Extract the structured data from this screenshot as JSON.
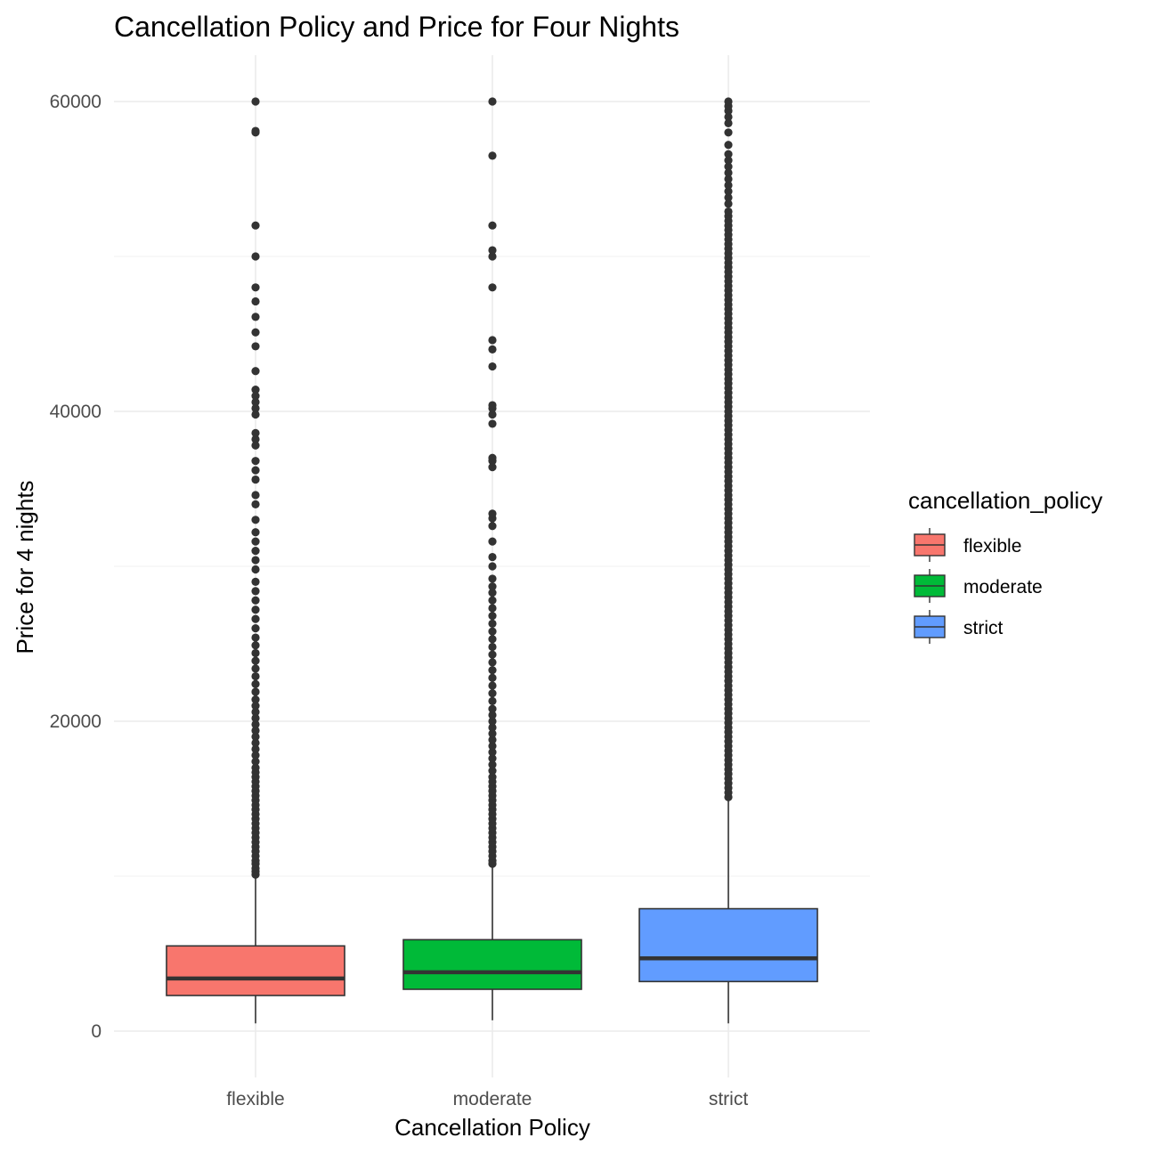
{
  "chart_data": {
    "type": "boxplot",
    "title": "Cancellation Policy and Price for Four Nights",
    "xlabel": "Cancellation Policy",
    "ylabel": "Price for 4 nights",
    "ylim": [
      -1500,
      63000
    ],
    "y_ticks": [
      0,
      20000,
      40000,
      60000
    ],
    "y_tick_labels": [
      "0",
      "20000",
      "40000",
      "60000"
    ],
    "grid": true,
    "legend": {
      "title": "cancellation_policy",
      "position": "right",
      "entries": [
        "flexible",
        "moderate",
        "strict"
      ]
    },
    "categories": [
      "flexible",
      "moderate",
      "strict"
    ],
    "colors": {
      "flexible": "#F8766D",
      "moderate": "#00BA38",
      "strict": "#619CFF",
      "box_outline": "#333333",
      "outlier": "#333333"
    },
    "series": [
      {
        "category": "flexible",
        "whisker_low": 500,
        "q1": 2300,
        "median": 3400,
        "q3": 5500,
        "whisker_high": 10000,
        "outliers": [
          10100,
          10300,
          10500,
          10800,
          11000,
          11300,
          11600,
          11900,
          12200,
          12500,
          12800,
          13100,
          13400,
          13700,
          14000,
          14300,
          14600,
          14900,
          15200,
          15500,
          15800,
          16100,
          16400,
          16700,
          17000,
          17400,
          17800,
          18200,
          18600,
          19000,
          19400,
          19800,
          20200,
          20600,
          21000,
          21400,
          21900,
          22400,
          22900,
          23400,
          23900,
          24400,
          24900,
          25400,
          26000,
          26600,
          27200,
          27800,
          28400,
          29000,
          29800,
          30400,
          31000,
          31600,
          32200,
          33000,
          34000,
          34600,
          35600,
          36200,
          36800,
          37800,
          38200,
          38600,
          39800,
          40200,
          40600,
          41000,
          41400,
          42600,
          44200,
          45100,
          46100,
          47100,
          48000,
          50000,
          52000,
          58000,
          58100,
          60000
        ]
      },
      {
        "category": "moderate",
        "whisker_low": 700,
        "q1": 2700,
        "median": 3800,
        "q3": 5900,
        "whisker_high": 10700,
        "outliers": [
          10800,
          11000,
          11300,
          11600,
          11900,
          12200,
          12500,
          12800,
          13100,
          13400,
          13700,
          14000,
          14300,
          14600,
          14900,
          15200,
          15500,
          15800,
          16100,
          16400,
          16800,
          17200,
          17600,
          18000,
          18400,
          18800,
          19200,
          19600,
          20000,
          20400,
          20800,
          21300,
          21800,
          22300,
          22800,
          23300,
          23800,
          24300,
          24800,
          25300,
          25800,
          26300,
          26800,
          27300,
          27800,
          28300,
          28700,
          29200,
          30000,
          30600,
          31600,
          32600,
          33100,
          33400,
          36400,
          36800,
          37000,
          39200,
          39800,
          40200,
          40400,
          42900,
          44000,
          44600,
          48000,
          50000,
          50400,
          52000,
          56500,
          60000
        ]
      },
      {
        "category": "strict",
        "whisker_low": 500,
        "q1": 3200,
        "median": 4700,
        "q3": 7900,
        "whisker_high": 15000,
        "outliers": [
          15100,
          15400,
          15700,
          16000,
          16300,
          16600,
          16900,
          17200,
          17500,
          17800,
          18100,
          18400,
          18700,
          19000,
          19300,
          19600,
          19900,
          20200,
          20500,
          20800,
          21100,
          21400,
          21700,
          22000,
          22300,
          22600,
          22900,
          23200,
          23500,
          23800,
          24100,
          24400,
          24700,
          25000,
          25300,
          25600,
          25900,
          26200,
          26500,
          26800,
          27100,
          27400,
          27700,
          28000,
          28300,
          28600,
          28900,
          29200,
          29500,
          29800,
          30100,
          30400,
          30700,
          31000,
          31300,
          31600,
          31900,
          32200,
          32500,
          32800,
          33100,
          33400,
          33700,
          34000,
          34300,
          34600,
          34900,
          35200,
          35500,
          35800,
          36100,
          36400,
          36700,
          37000,
          37300,
          37600,
          37900,
          38200,
          38500,
          38800,
          39100,
          39400,
          39700,
          40000,
          40300,
          40600,
          40900,
          41200,
          41500,
          41800,
          42100,
          42400,
          42700,
          43000,
          43300,
          43600,
          43900,
          44200,
          44500,
          44800,
          45100,
          45400,
          45700,
          46000,
          46300,
          46600,
          46900,
          47200,
          47500,
          47800,
          48100,
          48400,
          48700,
          49000,
          49300,
          49600,
          49900,
          50200,
          50500,
          50800,
          51100,
          51400,
          51700,
          52000,
          52300,
          52600,
          52900,
          53400,
          53800,
          54200,
          54600,
          55000,
          55400,
          55800,
          56200,
          56600,
          57200,
          58000,
          58600,
          59000,
          59400,
          59700,
          60000
        ]
      }
    ]
  }
}
